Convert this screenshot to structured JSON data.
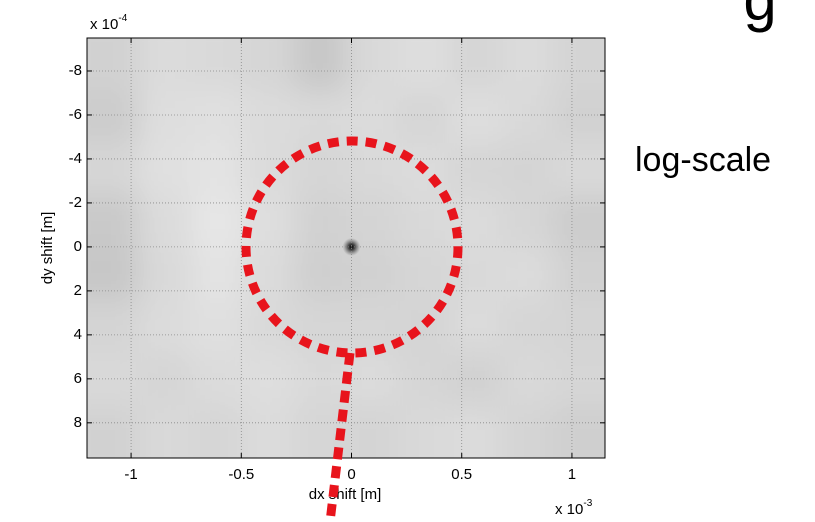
{
  "chart_data": {
    "type": "heatmap",
    "heading_fragment": "g",
    "annotation": "log-scale",
    "x_label": "dx shift [m]",
    "y_label": "dy shift [m]",
    "x_multiplier": "x 10",
    "x_exponent": "-3",
    "y_multiplier": "x 10",
    "y_exponent": "-4",
    "xlim": [
      -1.2,
      1.15
    ],
    "ylim": [
      -9.5,
      9.6
    ],
    "y_reversed": true,
    "xticks": [
      -1,
      -0.5,
      0,
      0.5,
      1
    ],
    "yticks": [
      -8,
      -6,
      -4,
      -2,
      0,
      2,
      4,
      6,
      8
    ],
    "grid": true,
    "colormap": "gray",
    "z": [
      [
        0.82,
        0.86,
        0.85,
        0.84,
        0.78,
        0.85,
        0.87,
        0.84,
        0.86,
        0.83
      ],
      [
        0.8,
        0.87,
        0.88,
        0.86,
        0.85,
        0.86,
        0.84,
        0.87,
        0.85,
        0.82
      ],
      [
        0.84,
        0.88,
        0.89,
        0.86,
        0.84,
        0.85,
        0.86,
        0.84,
        0.83,
        0.85
      ],
      [
        0.79,
        0.86,
        0.9,
        0.87,
        0.82,
        0.83,
        0.85,
        0.86,
        0.84,
        0.8
      ],
      [
        0.78,
        0.85,
        0.89,
        0.86,
        0.81,
        0.82,
        0.84,
        0.85,
        0.86,
        0.82
      ],
      [
        0.83,
        0.86,
        0.88,
        0.85,
        0.84,
        0.84,
        0.83,
        0.86,
        0.84,
        0.83
      ],
      [
        0.85,
        0.84,
        0.86,
        0.87,
        0.85,
        0.86,
        0.84,
        0.82,
        0.85,
        0.84
      ],
      [
        0.82,
        0.85,
        0.84,
        0.86,
        0.84,
        0.83,
        0.85,
        0.86,
        0.83,
        0.81
      ]
    ],
    "peak": {
      "x": 0,
      "y": 0
    }
  }
}
